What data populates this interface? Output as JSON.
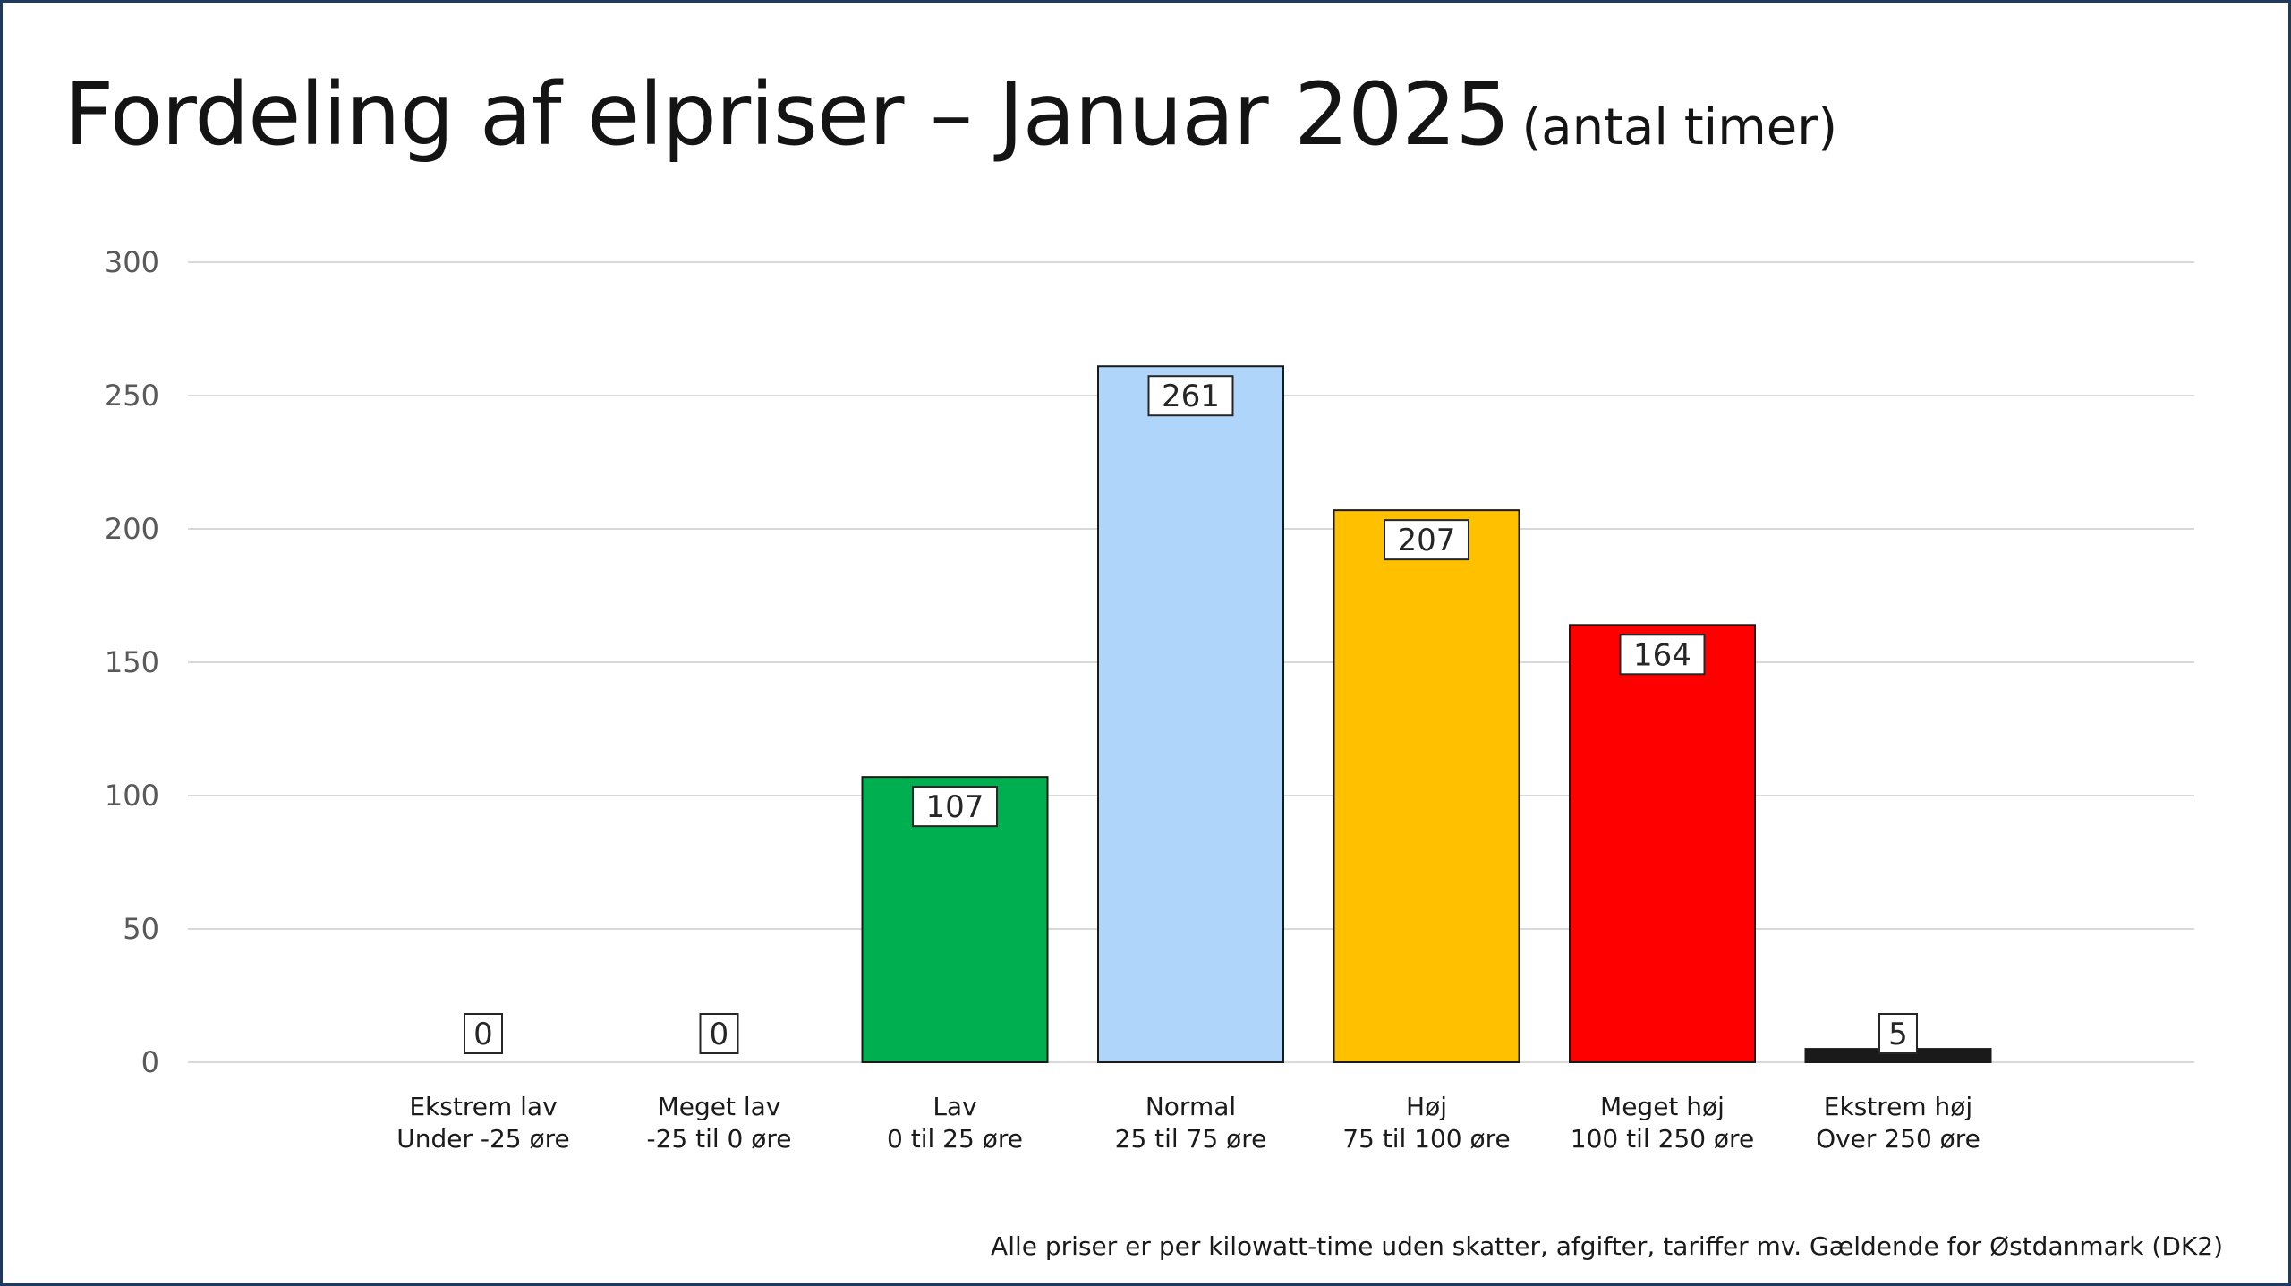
{
  "chart_data": {
    "type": "bar",
    "title": "Fordeling af elpriser – Januar 2025",
    "subtitle": "(antal timer)",
    "categories": [
      {
        "name": "Ekstrem lav",
        "range": "Under -25 øre"
      },
      {
        "name": "Meget lav",
        "range": "-25 til 0 øre"
      },
      {
        "name": "Lav",
        "range": "0 til 25 øre"
      },
      {
        "name": "Normal",
        "range": "25 til 75 øre"
      },
      {
        "name": "Høj",
        "range": "75 til 100 øre"
      },
      {
        "name": "Meget høj",
        "range": "100 til 250 øre"
      },
      {
        "name": "Ekstrem høj",
        "range": "Over 250 øre"
      }
    ],
    "values": [
      0,
      0,
      107,
      261,
      207,
      164,
      5
    ],
    "colors": [
      "#00b050",
      "#00b050",
      "#00b050",
      "#b0d5fa",
      "#ffc000",
      "#ff0000",
      "#1a1a1a"
    ],
    "ylim": [
      0,
      300
    ],
    "yticks": [
      0,
      50,
      100,
      150,
      200,
      250,
      300
    ],
    "grid": true,
    "legend": "none"
  },
  "footnote": "Alle priser er per kilowatt-time uden skatter, afgifter, tariffer mv. Gældende for Østdanmark (DK2)"
}
